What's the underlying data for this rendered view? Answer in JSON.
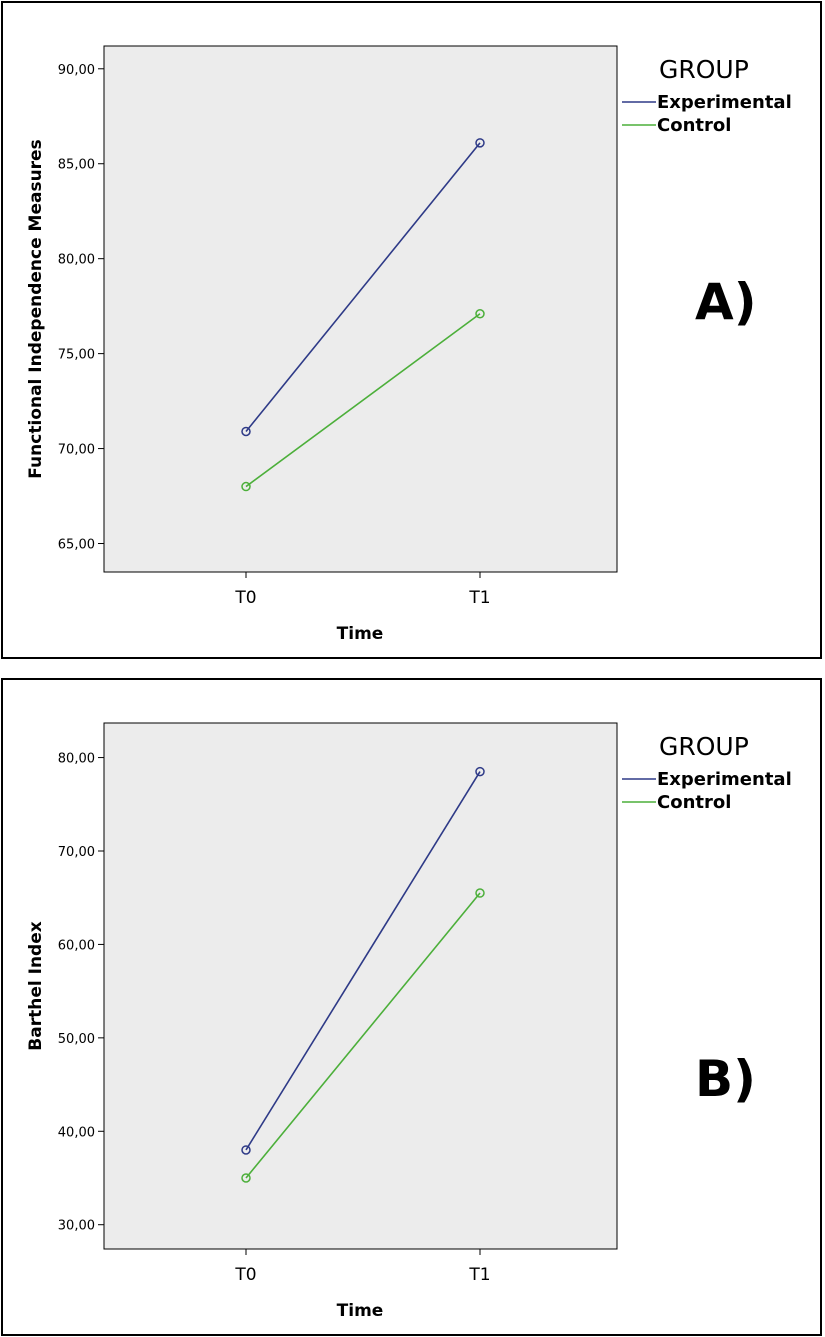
{
  "chart_data": [
    {
      "type": "line",
      "panel_label": "A)",
      "xlabel": "Time",
      "ylabel": "Functional Independence Measures",
      "categories": [
        "T0",
        "T1"
      ],
      "ylim": [
        63.5,
        91.2
      ],
      "yticks": [
        65,
        70,
        75,
        80,
        85,
        90
      ],
      "ytick_labels": [
        "65,00",
        "70,00",
        "75,00",
        "80,00",
        "85,00",
        "90,00"
      ],
      "legend_title": "GROUP",
      "series": [
        {
          "name": "Experimental",
          "values": [
            70.9,
            86.1
          ],
          "color": "#2e3a87"
        },
        {
          "name": "Control",
          "values": [
            68.0,
            77.1
          ],
          "color": "#4caf3a"
        }
      ]
    },
    {
      "type": "line",
      "panel_label": "B)",
      "xlabel": "Time",
      "ylabel": "Barthel Index",
      "categories": [
        "T0",
        "T1"
      ],
      "ylim": [
        27.4,
        83.7
      ],
      "yticks": [
        30,
        40,
        50,
        60,
        70,
        80
      ],
      "ytick_labels": [
        "30,00",
        "40,00",
        "50,00",
        "60,00",
        "70,00",
        "80,00"
      ],
      "legend_title": "GROUP",
      "series": [
        {
          "name": "Experimental",
          "values": [
            38.0,
            78.5
          ],
          "color": "#2e3a87"
        },
        {
          "name": "Control",
          "values": [
            35.0,
            65.5
          ],
          "color": "#4caf3a"
        }
      ]
    }
  ]
}
